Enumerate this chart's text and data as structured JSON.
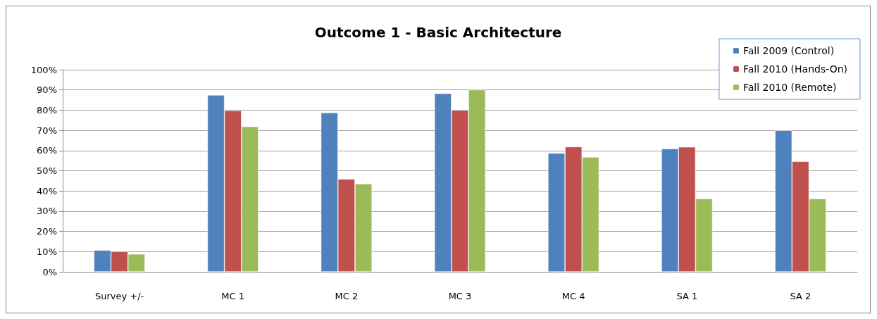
{
  "chart_data": {
    "type": "bar",
    "title": "Outcome 1 - Basic Architecture",
    "categories": [
      "Survey +/-",
      "MC 1",
      "MC 2",
      "MC 3",
      "MC 4",
      "SA 1",
      "SA 2"
    ],
    "series": [
      {
        "name": "Fall 2009 (Control)",
        "color": "#4f81bd",
        "values": [
          10.7,
          87.5,
          78.8,
          88.3,
          58.7,
          60.9,
          70
        ]
      },
      {
        "name": "Fall 2010 (Hands-On)",
        "color": "#c0504d",
        "values": [
          10.1,
          79.8,
          45.9,
          80,
          61.9,
          61.8,
          54.6
        ]
      },
      {
        "name": "Fall 2010 (Remote)",
        "color": "#9bbb59",
        "values": [
          8.8,
          71.9,
          43.6,
          90.1,
          56.8,
          36.2,
          36.2
        ]
      }
    ],
    "ylim": [
      0,
      100
    ],
    "yticks": [
      {
        "value": 0,
        "label": "0%"
      },
      {
        "value": 10,
        "label": "10%"
      },
      {
        "value": 20,
        "label": "20%"
      },
      {
        "value": 30,
        "label": "30%"
      },
      {
        "value": 40,
        "label": "40%"
      },
      {
        "value": 50,
        "label": "50%"
      },
      {
        "value": 60,
        "label": "60%"
      },
      {
        "value": 70,
        "label": "70%"
      },
      {
        "value": 80,
        "label": "80%"
      },
      {
        "value": 90,
        "label": "90%"
      },
      {
        "value": 100,
        "label": "100%"
      }
    ],
    "grid": "y",
    "legend": "top right"
  }
}
